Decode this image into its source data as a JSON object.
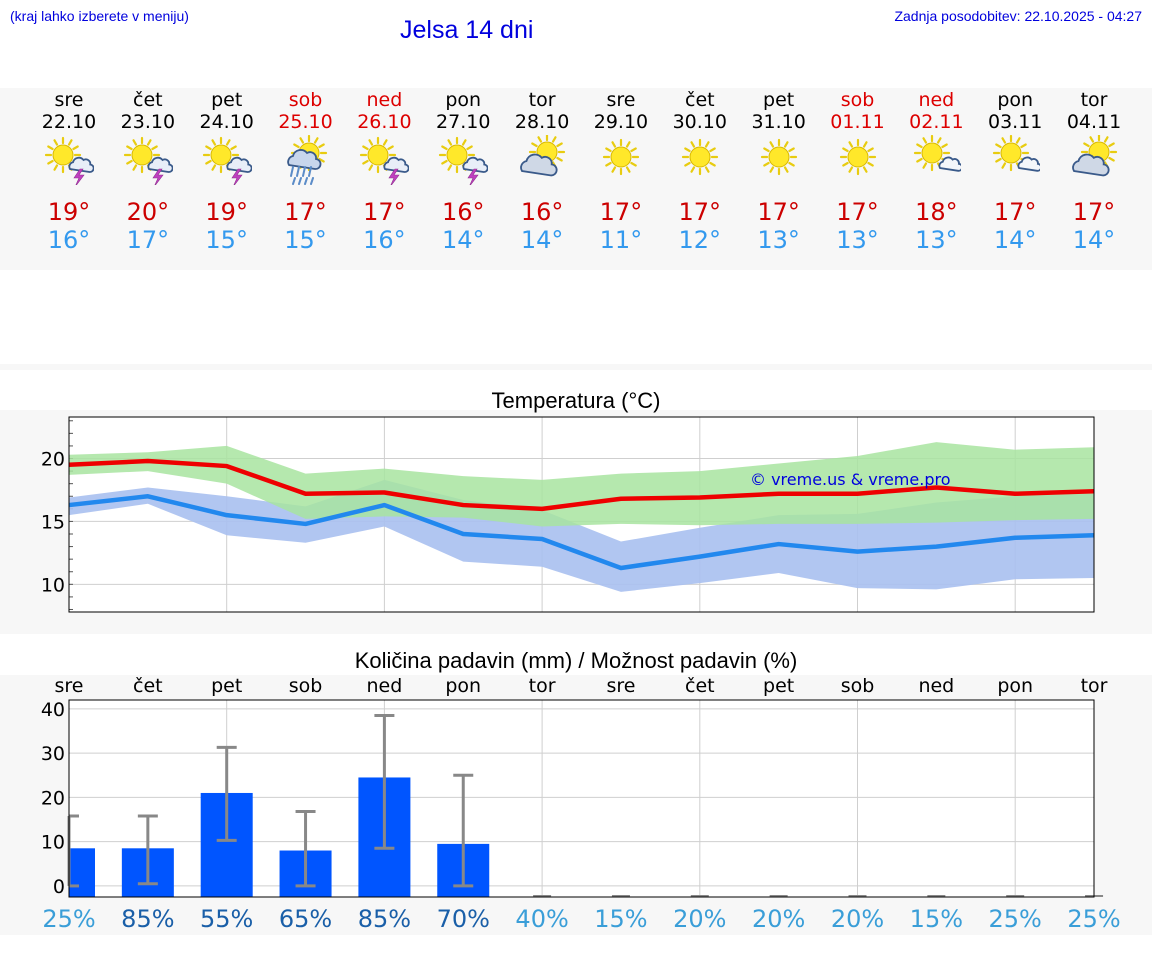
{
  "header": {
    "menu_note": "(kraj lahko izberete v meniju)",
    "title": "Jelsa 14 dni",
    "updated": "Zadnja posodobitev: 22.10.2025 - 04:27"
  },
  "days": [
    {
      "name": "sre",
      "date": "22.10",
      "weekend": false,
      "icon": "sun-thunderstorm-icon",
      "tmax": "19°",
      "tmin": "16°"
    },
    {
      "name": "čet",
      "date": "23.10",
      "weekend": false,
      "icon": "sun-thunderstorm-icon",
      "tmax": "20°",
      "tmin": "17°"
    },
    {
      "name": "pet",
      "date": "24.10",
      "weekend": false,
      "icon": "sun-thunderstorm-icon",
      "tmax": "19°",
      "tmin": "15°"
    },
    {
      "name": "sob",
      "date": "25.10",
      "weekend": true,
      "icon": "sun-rain-icon",
      "tmax": "17°",
      "tmin": "15°"
    },
    {
      "name": "ned",
      "date": "26.10",
      "weekend": true,
      "icon": "sun-thunderstorm-icon",
      "tmax": "17°",
      "tmin": "16°"
    },
    {
      "name": "pon",
      "date": "27.10",
      "weekend": false,
      "icon": "sun-thunderstorm-icon",
      "tmax": "16°",
      "tmin": "14°"
    },
    {
      "name": "tor",
      "date": "28.10",
      "weekend": false,
      "icon": "cloudy-sun-icon",
      "tmax": "16°",
      "tmin": "14°"
    },
    {
      "name": "sre",
      "date": "29.10",
      "weekend": false,
      "icon": "sun-icon",
      "tmax": "17°",
      "tmin": "11°"
    },
    {
      "name": "čet",
      "date": "30.10",
      "weekend": false,
      "icon": "sun-icon",
      "tmax": "17°",
      "tmin": "12°"
    },
    {
      "name": "pet",
      "date": "31.10",
      "weekend": false,
      "icon": "sun-icon",
      "tmax": "17°",
      "tmin": "13°"
    },
    {
      "name": "sob",
      "date": "01.11",
      "weekend": true,
      "icon": "sun-icon",
      "tmax": "17°",
      "tmin": "13°"
    },
    {
      "name": "ned",
      "date": "02.11",
      "weekend": true,
      "icon": "sun-small-cloud-icon",
      "tmax": "18°",
      "tmin": "13°"
    },
    {
      "name": "pon",
      "date": "03.11",
      "weekend": false,
      "icon": "sun-small-cloud-icon",
      "tmax": "17°",
      "tmin": "14°"
    },
    {
      "name": "tor",
      "date": "04.11",
      "weekend": false,
      "icon": "cloudy-sun-icon",
      "tmax": "17°",
      "tmin": "14°"
    }
  ],
  "colors": {
    "max_line": "#ee0000",
    "min_line": "#2288ee",
    "max_band": "#a8e4a0",
    "min_band": "#a8c0f0",
    "precip_bar": "#0055ff",
    "error_bar": "#888888",
    "link_text": "#0000dd"
  },
  "chart_data": [
    {
      "type": "line",
      "title": "Temperatura (°C)",
      "watermark": "© vreme.us & vreme.pro",
      "ylim": [
        7.8,
        23.3
      ],
      "yticks": [
        10,
        15,
        20
      ],
      "grid": true,
      "x": [
        0,
        1,
        2,
        3,
        4,
        5,
        6,
        7,
        8,
        9,
        10,
        11,
        12,
        13
      ],
      "series": [
        {
          "role": "max",
          "values": [
            19.5,
            19.8,
            19.4,
            17.2,
            17.3,
            16.3,
            16.0,
            16.8,
            16.9,
            17.2,
            17.2,
            17.7,
            17.2,
            17.4
          ],
          "band_low": [
            18.7,
            19.0,
            18.0,
            15.2,
            15.4,
            15.3,
            14.6,
            14.8,
            14.7,
            14.8,
            14.8,
            14.9,
            15.1,
            15.2
          ],
          "band_high": [
            20.3,
            20.5,
            21.0,
            18.8,
            19.2,
            18.6,
            18.3,
            18.8,
            19.0,
            19.6,
            20.2,
            21.3,
            20.7,
            20.9
          ]
        },
        {
          "role": "min",
          "values": [
            16.3,
            17.0,
            15.5,
            14.8,
            16.3,
            14.0,
            13.6,
            11.3,
            12.2,
            13.2,
            12.6,
            13.0,
            13.7,
            13.9
          ],
          "band_low": [
            15.5,
            16.4,
            13.9,
            13.3,
            14.6,
            11.8,
            11.4,
            9.4,
            10.1,
            10.9,
            9.7,
            9.6,
            10.4,
            10.5
          ],
          "band_high": [
            16.9,
            17.7,
            17.0,
            16.2,
            18.3,
            16.7,
            15.9,
            13.4,
            14.5,
            15.5,
            15.6,
            16.5,
            17.0,
            17.2
          ]
        }
      ]
    },
    {
      "type": "bar",
      "title": "Količina padavin (mm) / Možnost padavin (%)",
      "categories": [
        "sre",
        "čet",
        "pet",
        "sob",
        "ned",
        "pon",
        "tor",
        "sre",
        "čet",
        "pet",
        "sob",
        "ned",
        "pon",
        "tor"
      ],
      "values": [
        8.5,
        8.5,
        21.0,
        8.0,
        24.5,
        9.5,
        0,
        0,
        0,
        0,
        0,
        0,
        0,
        0
      ],
      "err_low": [
        0,
        0.5,
        10.3,
        0,
        8.5,
        0,
        0,
        0,
        0,
        0,
        0,
        0,
        0,
        0
      ],
      "err_high": [
        15.8,
        15.8,
        31.3,
        16.8,
        38.5,
        25.0,
        0,
        0,
        0,
        0,
        0,
        0,
        0,
        0
      ],
      "probabilities": [
        "25%",
        "85%",
        "55%",
        "65%",
        "85%",
        "70%",
        "40%",
        "15%",
        "20%",
        "20%",
        "20%",
        "15%",
        "25%",
        "25%"
      ],
      "ylim": [
        -2.5,
        42
      ],
      "yticks": [
        0,
        10,
        20,
        30,
        40
      ],
      "grid": true
    }
  ]
}
